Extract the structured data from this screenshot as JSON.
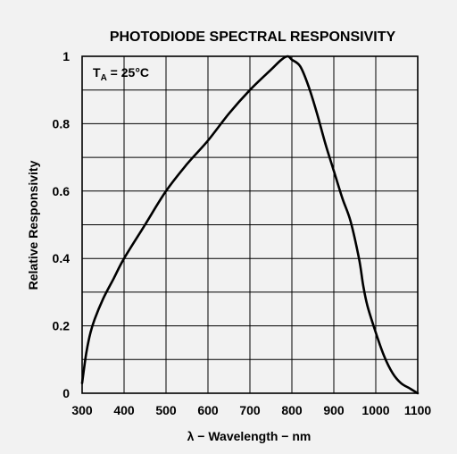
{
  "chart_data": {
    "type": "line",
    "title": "PHOTODIODE SPECTRAL RESPONSIVITY",
    "xlabel": "λ − Wavelength − nm",
    "ylabel": "Relative Responsivity",
    "xlim": [
      300,
      1100
    ],
    "ylim": [
      0,
      1
    ],
    "grid": true,
    "x_ticks": [
      300,
      400,
      500,
      600,
      700,
      800,
      900,
      1000,
      1100
    ],
    "y_ticks": [
      0,
      0.2,
      0.4,
      0.6,
      0.8,
      1
    ],
    "y_tick_labels": [
      "0",
      "0.2",
      "0.4",
      "0.6",
      "0.8",
      "1"
    ],
    "annotation": {
      "main": "T",
      "sub": "A",
      "rest": " = 25°C"
    },
    "series": [
      {
        "x": [
          300,
          310,
          320,
          330,
          350,
          375,
          400,
          450,
          500,
          550,
          600,
          650,
          700,
          750,
          775,
          790,
          800,
          820,
          840,
          860,
          880,
          900,
          920,
          940,
          960,
          970,
          980,
          1000,
          1020,
          1040,
          1060,
          1080,
          1100
        ],
        "y": [
          0.03,
          0.12,
          0.18,
          0.22,
          0.28,
          0.34,
          0.4,
          0.5,
          0.6,
          0.68,
          0.75,
          0.83,
          0.9,
          0.96,
          0.99,
          1.0,
          0.99,
          0.97,
          0.91,
          0.83,
          0.74,
          0.66,
          0.58,
          0.51,
          0.4,
          0.32,
          0.26,
          0.18,
          0.11,
          0.06,
          0.03,
          0.015,
          0.0
        ]
      }
    ]
  }
}
